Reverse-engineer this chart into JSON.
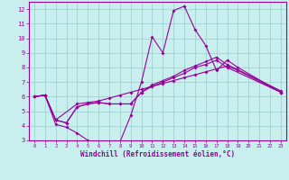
{
  "xlabel": "Windchill (Refroidissement éolien,°C)",
  "xlim": [
    -0.5,
    23.5
  ],
  "ylim": [
    3,
    12.5
  ],
  "xticks": [
    0,
    1,
    2,
    3,
    4,
    5,
    6,
    7,
    8,
    9,
    10,
    11,
    12,
    13,
    14,
    15,
    16,
    17,
    18,
    19,
    20,
    21,
    22,
    23
  ],
  "yticks": [
    3,
    4,
    5,
    6,
    7,
    8,
    9,
    10,
    11,
    12
  ],
  "bg_color": "#c8eeee",
  "line_color": "#990099",
  "grid_color": "#99cccc",
  "line1_x": [
    0,
    1,
    2,
    3,
    4,
    5,
    6,
    7,
    8,
    9,
    10,
    11,
    12,
    13,
    14,
    15,
    16,
    17,
    18,
    19,
    23
  ],
  "line1_y": [
    6.0,
    6.1,
    4.1,
    3.9,
    3.5,
    3.0,
    2.7,
    2.7,
    2.9,
    4.7,
    7.0,
    10.1,
    9.0,
    11.9,
    12.2,
    10.6,
    9.5,
    7.8,
    8.5,
    8.0,
    6.3
  ],
  "line2_x": [
    0,
    1,
    2,
    3,
    4,
    5,
    6,
    7,
    8,
    9,
    10,
    11,
    12,
    13,
    14,
    15,
    16,
    17,
    18,
    23
  ],
  "line2_y": [
    6.0,
    6.1,
    4.4,
    4.2,
    5.3,
    5.5,
    5.6,
    5.5,
    5.5,
    5.5,
    6.3,
    6.7,
    7.0,
    7.3,
    7.6,
    8.0,
    8.2,
    8.5,
    8.0,
    6.3
  ],
  "line3_x": [
    0,
    1,
    2,
    3,
    4,
    5,
    6,
    7,
    8,
    9,
    10,
    11,
    12,
    13,
    14,
    15,
    16,
    17,
    18,
    23
  ],
  "line3_y": [
    6.0,
    6.1,
    4.4,
    4.2,
    5.3,
    5.5,
    5.6,
    5.5,
    5.5,
    5.5,
    6.3,
    6.8,
    7.1,
    7.4,
    7.8,
    8.1,
    8.4,
    8.7,
    8.2,
    6.4
  ],
  "line4_x": [
    0,
    1,
    2,
    4,
    5,
    6,
    7,
    8,
    9,
    10,
    11,
    12,
    13,
    14,
    15,
    16,
    17,
    18,
    19,
    23
  ],
  "line4_y": [
    6.0,
    6.1,
    4.4,
    5.5,
    5.6,
    5.7,
    5.9,
    6.1,
    6.3,
    6.5,
    6.7,
    6.9,
    7.1,
    7.3,
    7.5,
    7.7,
    7.9,
    8.1,
    7.8,
    6.3
  ]
}
